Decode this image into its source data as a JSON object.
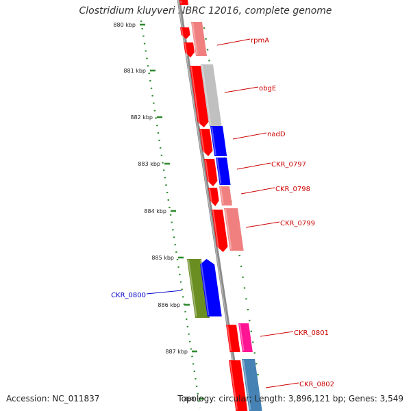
{
  "title": "Clostridium kluyveri NBRC 12016, complete genome",
  "footer": {
    "accession": "Accession: NC_011837",
    "summary": "Topology: circular; Length: 3,896,121 bp; Genes: 3,549"
  },
  "scale_labels": [
    "880 kbp",
    "881 kbp",
    "882 kbp",
    "883 kbp",
    "884 kbp",
    "885 kbp",
    "886 kbp",
    "887 kbp",
    "888"
  ],
  "gene_labels": [
    {
      "text": "rpmA",
      "color": "#cc0000"
    },
    {
      "text": "obgE",
      "color": "#cc0000"
    },
    {
      "text": "nadD",
      "color": "#cc0000"
    },
    {
      "text": "CKR_0797",
      "color": "#cc0000"
    },
    {
      "text": "CKR_0798",
      "color": "#cc0000"
    },
    {
      "text": "CKR_0799",
      "color": "#cc0000"
    },
    {
      "text": "CKR_0800",
      "color": "#0000cc"
    },
    {
      "text": "CKR_0801",
      "color": "#cc0000"
    },
    {
      "text": "CKR_0802",
      "color": "#cc0000"
    }
  ],
  "colors": {
    "backbone": "#8c8c8c",
    "tick": "#2e8b2e",
    "strand_arrow": "#ff0000",
    "blue_gene": "#0000ff",
    "light_red": "#f08080",
    "grey_gene": "#c0c0c0",
    "olive_gene": "#6b8e23",
    "pink_gene": "#ff1493",
    "steel_gene": "#4682b4"
  }
}
